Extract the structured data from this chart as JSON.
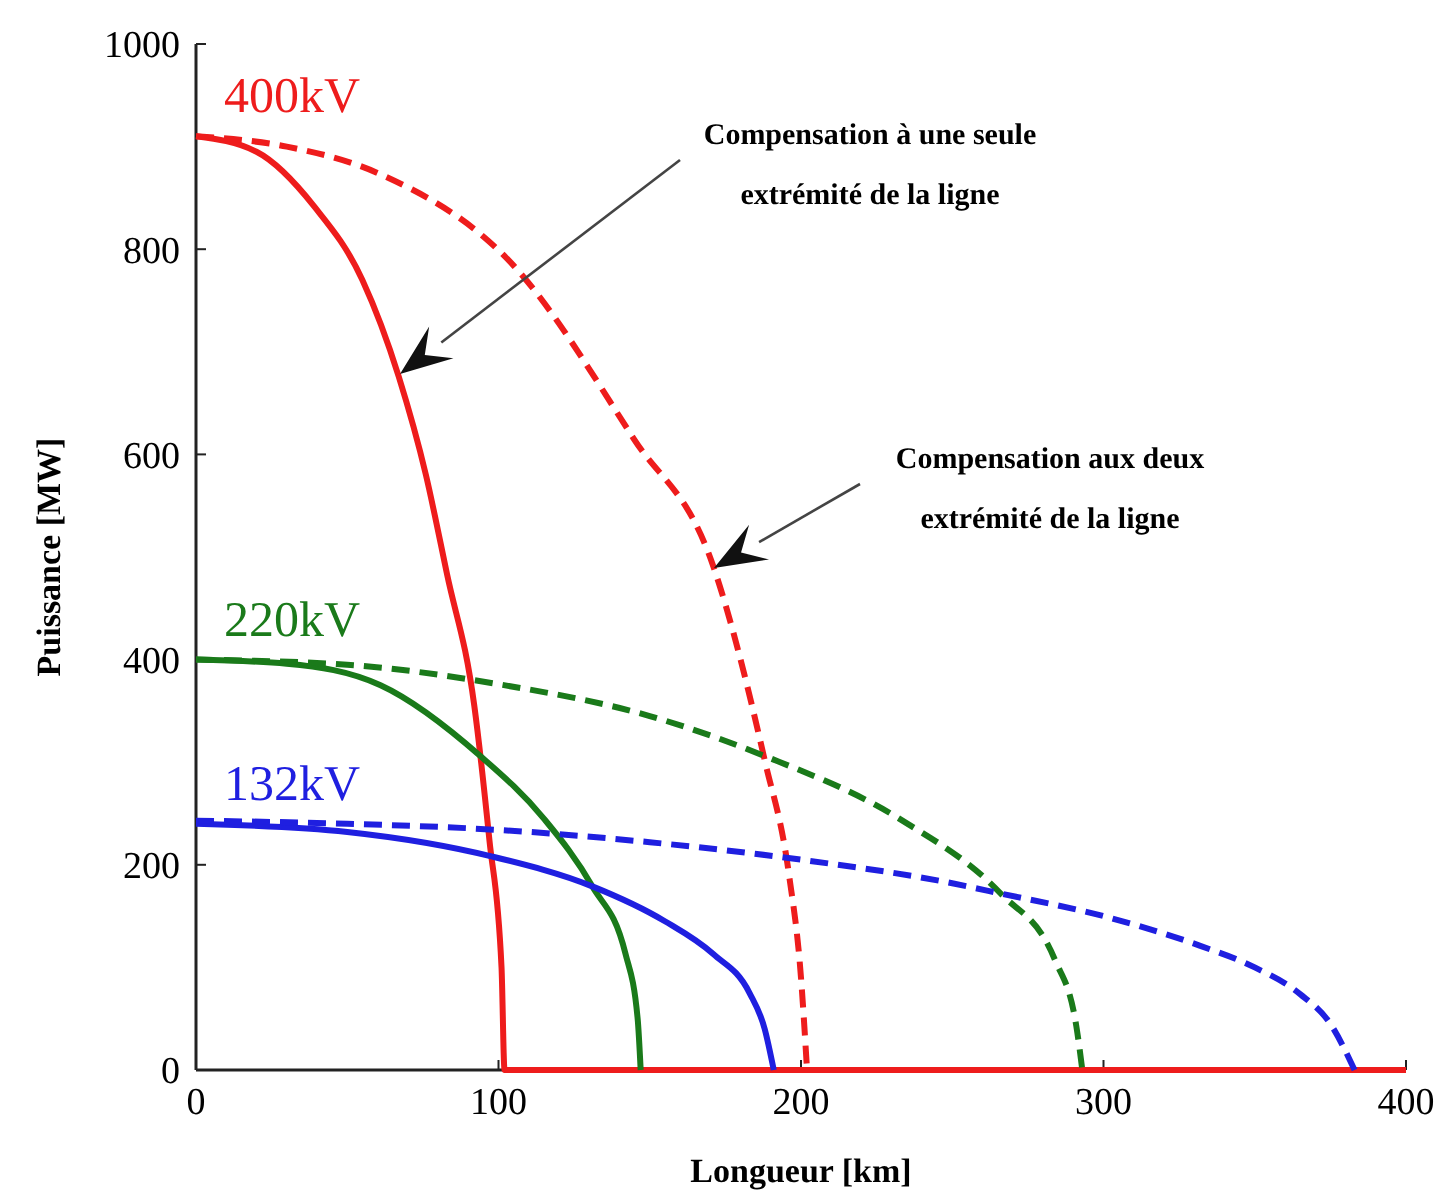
{
  "chart_data": {
    "type": "line",
    "xlabel": "Longueur [km]",
    "ylabel": "Puissance [MW]",
    "xlim": [
      0,
      400
    ],
    "ylim": [
      0,
      1000
    ],
    "xticks": [
      0,
      100,
      200,
      300,
      400
    ],
    "yticks": [
      0,
      200,
      400,
      600,
      800,
      1000
    ],
    "grid": false,
    "annotations": [
      "Compensation à une seule\nextrémité de la ligne",
      "Compensation aux deux\nextrémité de la ligne"
    ],
    "series": [
      {
        "name": "400kV",
        "color": "#ee1c1c",
        "line_style": "solid",
        "x": [
          0,
          20,
          39,
          55,
          67,
          76,
          83,
          92,
          97,
          101,
          102,
          400
        ],
        "values": [
          910,
          895,
          842,
          770,
          676,
          580,
          483,
          355,
          224,
          100,
          0,
          0
        ]
      },
      {
        "color": "#ee1c1c",
        "line_style": "dashed",
        "x": [
          0,
          30,
          61,
          105,
          145,
          171,
          188,
          196,
          200,
          202
        ],
        "values": [
          910,
          900,
          873,
          784,
          614,
          491,
          302,
          191,
          90,
          0
        ]
      },
      {
        "name": "220kV",
        "color": "#1a7a1a",
        "line_style": "solid",
        "x": [
          0,
          30,
          61,
          94,
          115,
          131,
          142,
          146,
          147
        ],
        "values": [
          400,
          396,
          375,
          306,
          245,
          179,
          113,
          50,
          0
        ]
      },
      {
        "color": "#1a7a1a",
        "line_style": "dashed",
        "x": [
          0,
          50,
          100,
          150,
          188,
          233,
          266,
          284,
          291,
          293
        ],
        "values": [
          400,
          395,
          376,
          345,
          306,
          244,
          172,
          107,
          43,
          0
        ]
      },
      {
        "name": "132kV",
        "color": "#1f1fe0",
        "line_style": "solid",
        "x": [
          0,
          50,
          98,
          131,
          155,
          171,
          183,
          188,
          191
        ],
        "values": [
          240,
          232,
          208,
          179,
          145,
          113,
          75,
          40,
          0
        ]
      },
      {
        "color": "#1f1fe0",
        "line_style": "dashed",
        "x": [
          0,
          50,
          100,
          150,
          200,
          250,
          266,
          300,
          332,
          350,
          365,
          375,
          383
        ],
        "values": [
          243,
          240,
          234,
          222,
          205,
          182,
          172,
          150,
          121,
          100,
          74,
          45,
          0
        ]
      }
    ]
  }
}
